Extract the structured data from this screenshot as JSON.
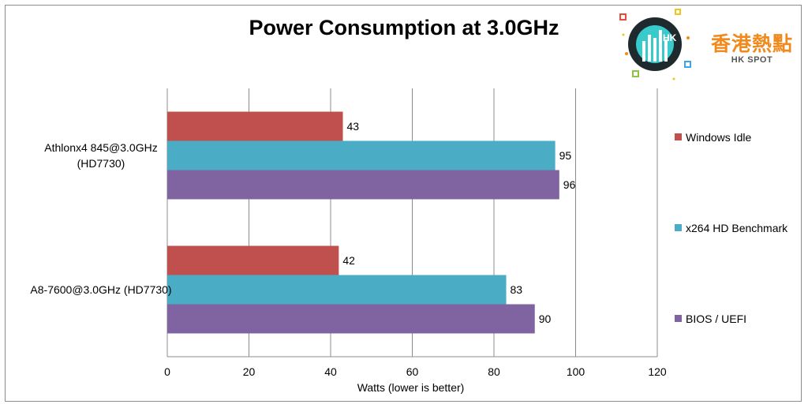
{
  "chart_data": {
    "type": "bar",
    "orientation": "horizontal",
    "title": "Power Consumption at 3.0GHz",
    "xlabel": "Watts (lower is better)",
    "ylabel": "",
    "xlim": [
      0,
      120
    ],
    "xticks": [
      "0",
      "20",
      "40",
      "60",
      "80",
      "100",
      "120"
    ],
    "grid": true,
    "legend_position": "right",
    "categories": [
      [
        "Athlonx4 845@3.0GHz",
        "(HD7730)"
      ],
      [
        "A8-7600@3.0GHz (HD7730)"
      ]
    ],
    "series": [
      {
        "name": "Windows Idle",
        "color": "#c0504d",
        "values": [
          43,
          42
        ]
      },
      {
        "name": "x264 HD Benchmark",
        "color": "#4bacc6",
        "values": [
          95,
          83
        ]
      },
      {
        "name": "BIOS / UEFI",
        "color": "#8064a2",
        "values": [
          96,
          90
        ]
      }
    ]
  },
  "logo": {
    "badge_text": "HK",
    "name_cn": "香港熱點",
    "name_en": "HK SPOT",
    "accent_color": "#f08a1c",
    "badge_color": "#1e2a2e",
    "glow_color": "#3ee6e6"
  }
}
